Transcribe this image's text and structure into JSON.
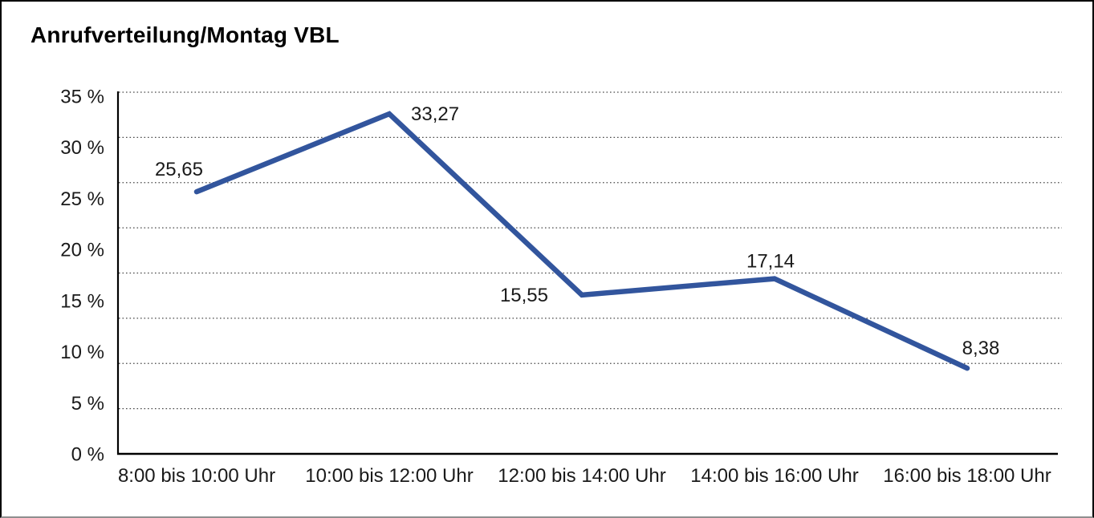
{
  "chart_data": {
    "type": "line",
    "title": "Anrufverteilung/Montag VBL",
    "categories": [
      "8:00 bis 10:00 Uhr",
      "10:00 bis 12:00 Uhr",
      "12:00 bis 14:00 Uhr",
      "14:00 bis 16:00 Uhr",
      "16:00 bis 18:00 Uhr"
    ],
    "values": [
      25.65,
      33.27,
      15.55,
      17.14,
      8.38
    ],
    "value_labels": [
      "25,65",
      "33,27",
      "15,55",
      "17,14",
      "8,38"
    ],
    "y_ticks": [
      "35 %",
      "30 %",
      "25 %",
      "20 %",
      "15 %",
      "10 %",
      "5 %",
      "0 %"
    ],
    "ylim": [
      0,
      35
    ],
    "ytick_step": 5,
    "xlabel": "",
    "ylabel": "",
    "grid": "horizontal-dotted",
    "legend_position": "none",
    "line_color": "#32559D",
    "axis_color": "#000000",
    "grid_color": "#4a4a4a",
    "text_color": "#1a1a1a"
  }
}
